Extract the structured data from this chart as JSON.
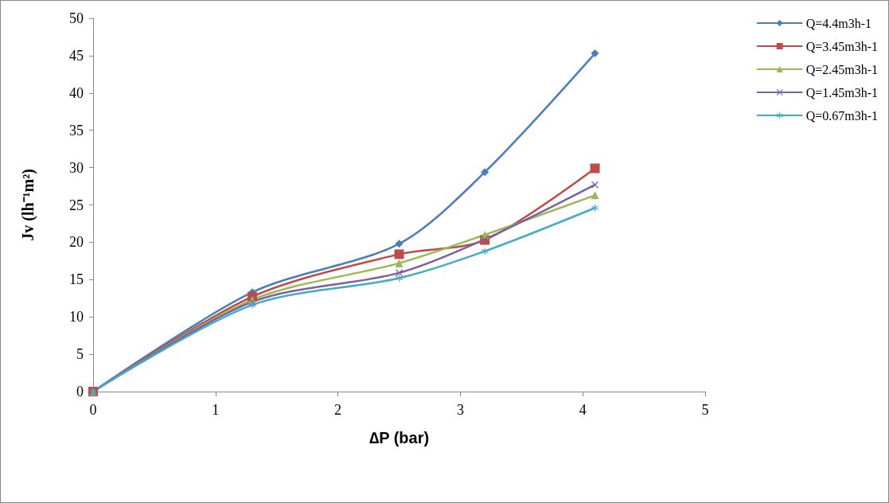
{
  "chart_data": {
    "type": "line",
    "xlabel": "∆P (bar)",
    "ylabel": "Jv (lh⁻¹m²)",
    "xlim": [
      0,
      5
    ],
    "xticks": [
      0,
      1,
      2,
      3,
      4,
      5
    ],
    "ylim": [
      0,
      50
    ],
    "yticks": [
      0,
      5,
      10,
      15,
      20,
      25,
      30,
      35,
      40,
      45,
      50
    ],
    "grid": false,
    "legend": "top right",
    "line_style": "solid",
    "series": [
      {
        "name": "Q=4.4m3h-1",
        "color": "#4a7ebb",
        "marker": "diamond",
        "x": [
          0,
          1.3,
          2.5,
          3.2,
          4.1
        ],
        "values": [
          0,
          13.3,
          19.8,
          29.4,
          45.3
        ]
      },
      {
        "name": "Q=3.45m3h-1",
        "color": "#be4b48",
        "marker": "square",
        "x": [
          0,
          1.3,
          2.5,
          3.2,
          4.1
        ],
        "values": [
          0,
          12.7,
          18.4,
          20.3,
          29.9
        ]
      },
      {
        "name": "Q=2.45m3h-1",
        "color": "#98b954",
        "marker": "triangle",
        "x": [
          0,
          1.3,
          2.5,
          3.2,
          4.1
        ],
        "values": [
          0,
          12.3,
          17.2,
          21.0,
          26.3
        ]
      },
      {
        "name": "Q=1.45m3h-1",
        "color": "#7d60a0",
        "marker": "cross",
        "x": [
          0,
          1.3,
          2.5,
          3.2,
          4.1
        ],
        "values": [
          0,
          12.0,
          15.9,
          20.4,
          27.7
        ]
      },
      {
        "name": "Q=0.67m3h-1",
        "color": "#46aac5",
        "marker": "star",
        "x": [
          0,
          1.3,
          2.5,
          3.2,
          4.1
        ],
        "values": [
          0,
          11.6,
          15.2,
          18.8,
          24.6
        ]
      }
    ]
  }
}
